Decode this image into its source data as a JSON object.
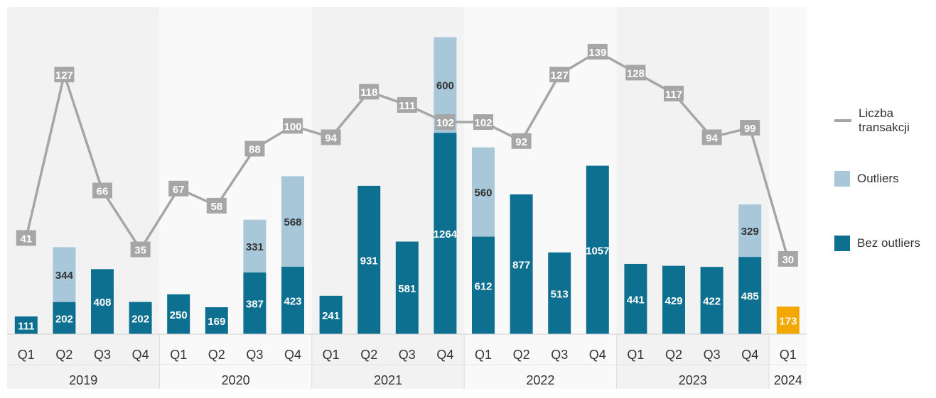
{
  "colors": {
    "bez_outliers": "#0e7090",
    "outliers": "#a8c8da",
    "highlight": "#f2a800",
    "line": "#a6a6a6",
    "label_box": "#a6a6a6",
    "band_dark": "#f2f2f2",
    "band_light": "#f9f9f9"
  },
  "legend": {
    "line_label": "Liczba transakcji",
    "outliers_label": "Outliers",
    "bez_label": "Bez outliers"
  },
  "chart_data": {
    "type": "bar",
    "stacked": true,
    "years": [
      "2019",
      "2020",
      "2021",
      "2022",
      "2023",
      "2024"
    ],
    "categories": [
      {
        "year": "2019",
        "q": "Q1"
      },
      {
        "year": "2019",
        "q": "Q2"
      },
      {
        "year": "2019",
        "q": "Q3"
      },
      {
        "year": "2019",
        "q": "Q4"
      },
      {
        "year": "2020",
        "q": "Q1"
      },
      {
        "year": "2020",
        "q": "Q2"
      },
      {
        "year": "2020",
        "q": "Q3"
      },
      {
        "year": "2020",
        "q": "Q4"
      },
      {
        "year": "2021",
        "q": "Q1"
      },
      {
        "year": "2021",
        "q": "Q2"
      },
      {
        "year": "2021",
        "q": "Q3"
      },
      {
        "year": "2021",
        "q": "Q4"
      },
      {
        "year": "2022",
        "q": "Q1"
      },
      {
        "year": "2022",
        "q": "Q2"
      },
      {
        "year": "2022",
        "q": "Q3"
      },
      {
        "year": "2022",
        "q": "Q4"
      },
      {
        "year": "2023",
        "q": "Q1"
      },
      {
        "year": "2023",
        "q": "Q2"
      },
      {
        "year": "2023",
        "q": "Q3"
      },
      {
        "year": "2023",
        "q": "Q4"
      },
      {
        "year": "2024",
        "q": "Q1"
      }
    ],
    "series": [
      {
        "name": "Bez outliers",
        "kind": "bar",
        "values": [
          111,
          202,
          408,
          202,
          250,
          169,
          387,
          423,
          241,
          931,
          581,
          1264,
          612,
          877,
          513,
          1057,
          441,
          429,
          422,
          485,
          173
        ]
      },
      {
        "name": "Outliers",
        "kind": "bar",
        "values": [
          null,
          344,
          null,
          null,
          null,
          null,
          331,
          568,
          null,
          null,
          null,
          600,
          560,
          null,
          null,
          null,
          null,
          null,
          null,
          329,
          null
        ]
      },
      {
        "name": "Liczba transakcji",
        "kind": "line",
        "values": [
          41,
          127,
          66,
          35,
          67,
          58,
          88,
          100,
          94,
          118,
          111,
          102,
          102,
          92,
          127,
          139,
          128,
          117,
          94,
          99,
          30
        ]
      }
    ],
    "highlight_index": 20,
    "grid": false,
    "legend_position": "right"
  }
}
